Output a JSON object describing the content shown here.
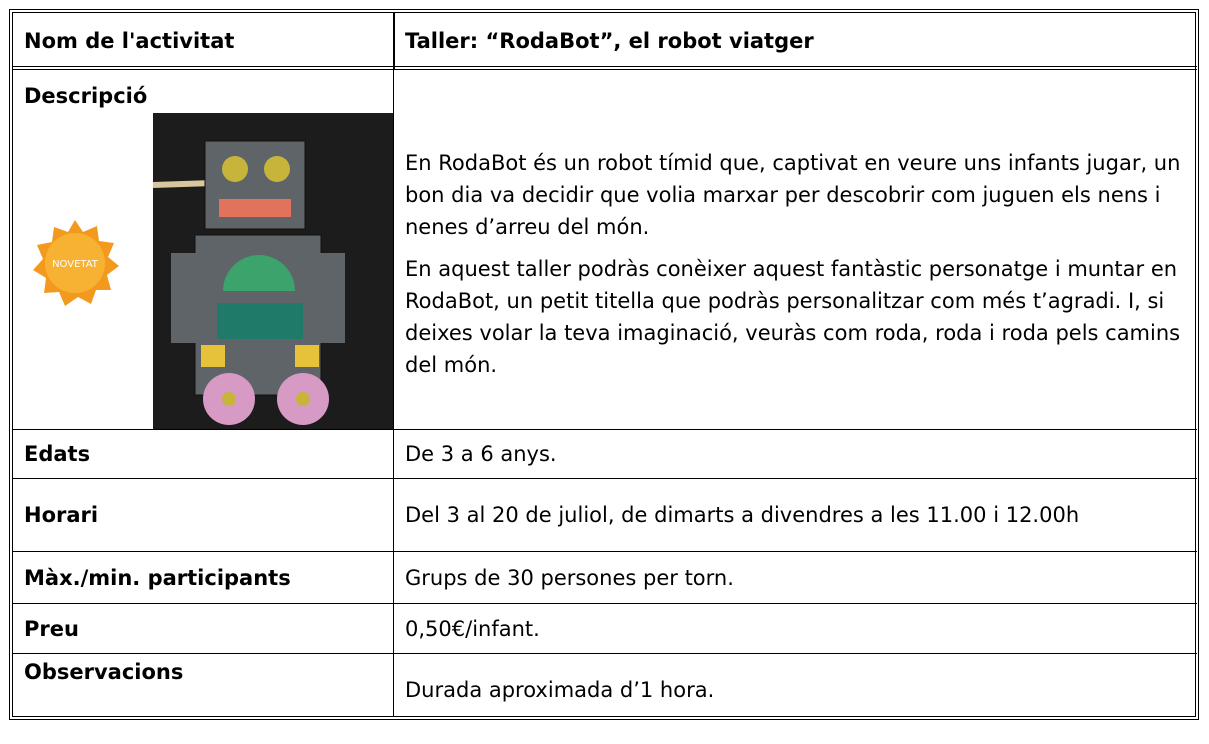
{
  "table": {
    "header": [
      "Nom de l'activitat",
      "Taller: “RodaBot”, el robot viatger"
    ],
    "rows": [
      {
        "label": "Descripció",
        "badge": "NOVETAT",
        "paragraphs": [
          "En RodaBot és un robot tímid que, captivat en veure uns infants jugar, un bon dia va decidir que volia marxar per descobrir com juguen els nens i nenes d’arreu del món.",
          "En aquest taller podràs conèixer aquest fantàstic personatge i muntar en RodaBot, un petit titella que podràs personalitzar com més t’agradi. I, si deixes volar la teva imaginació, veuràs com roda, roda i roda pels camins del món."
        ]
      },
      {
        "label": "Edats",
        "value": "De 3 a 6 anys."
      },
      {
        "label": "Horari",
        "value": "Del 3 al 20 de juliol, de dimarts a divendres a les 11.00 i 12.00h"
      },
      {
        "label": "Màx./min. participants",
        "value": "Grups de 30 persones per torn."
      },
      {
        "label": "Preu",
        "value": "0,50€/infant."
      },
      {
        "label": "Observacions",
        "value": "Durada aproximada d’1 hora."
      }
    ]
  }
}
